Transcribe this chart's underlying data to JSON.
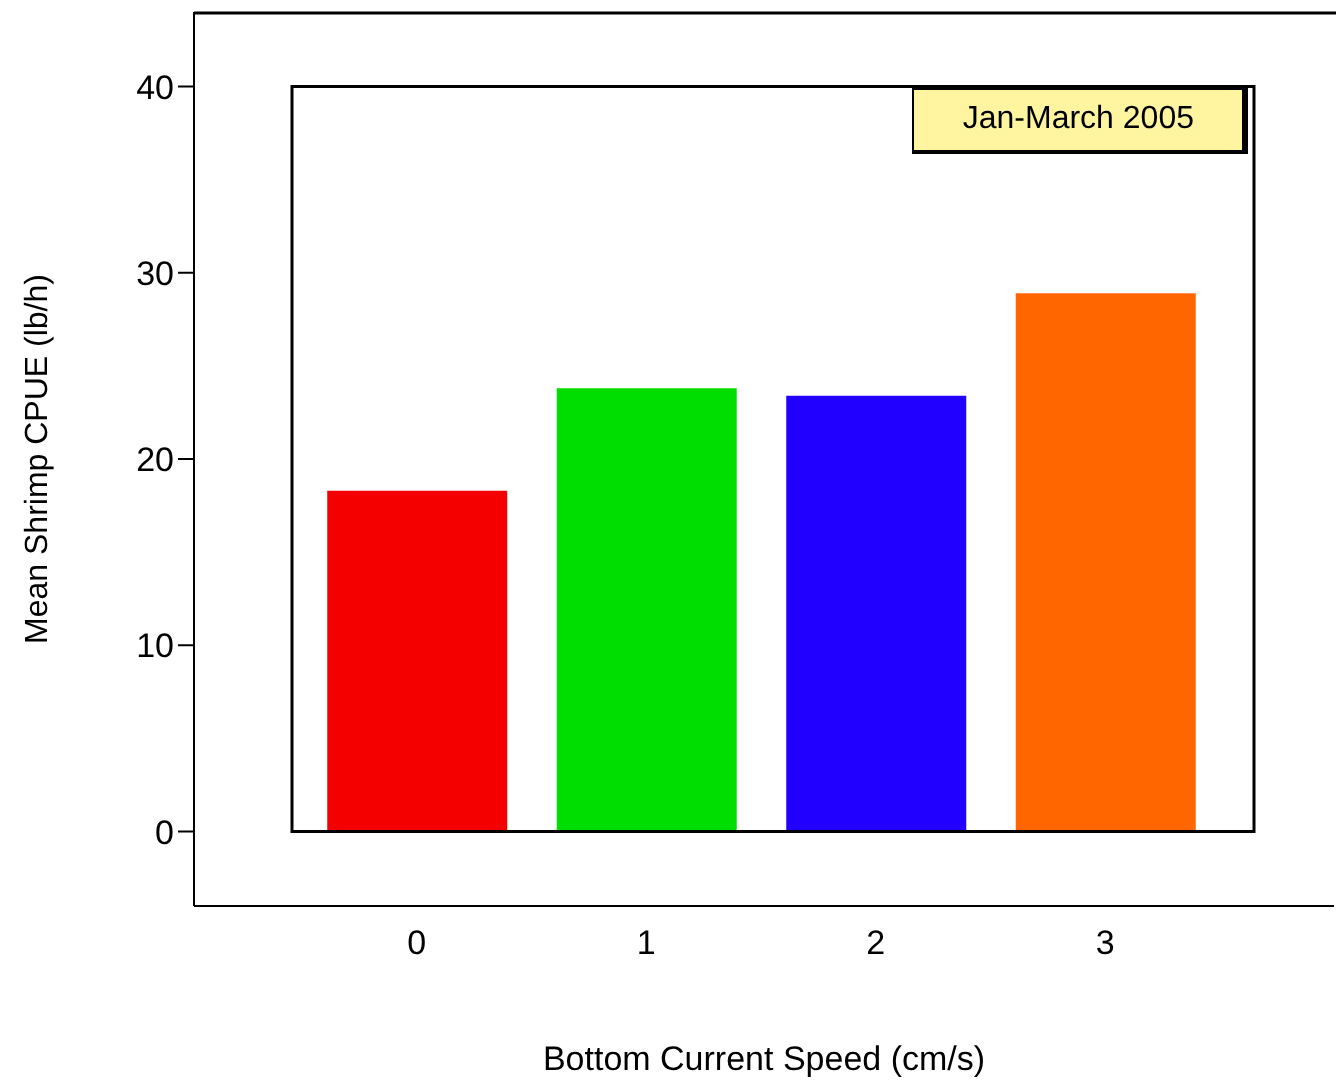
{
  "chart_data": {
    "type": "bar",
    "xlabel": "Bottom Current Speed (cm/s)",
    "ylabel": "Mean Shrimp CPUE (lb/h)",
    "categories": [
      "0",
      "1",
      "2",
      "3"
    ],
    "values": [
      18.3,
      23.8,
      23.4,
      28.9
    ],
    "colors": [
      "#f50000",
      "#00dd00",
      "#2200ff",
      "#ff6600"
    ],
    "ylim": [
      -4,
      44
    ],
    "yticks": [
      0,
      10,
      20,
      30,
      40
    ],
    "annotations": [
      "Jan-March 2005"
    ]
  }
}
